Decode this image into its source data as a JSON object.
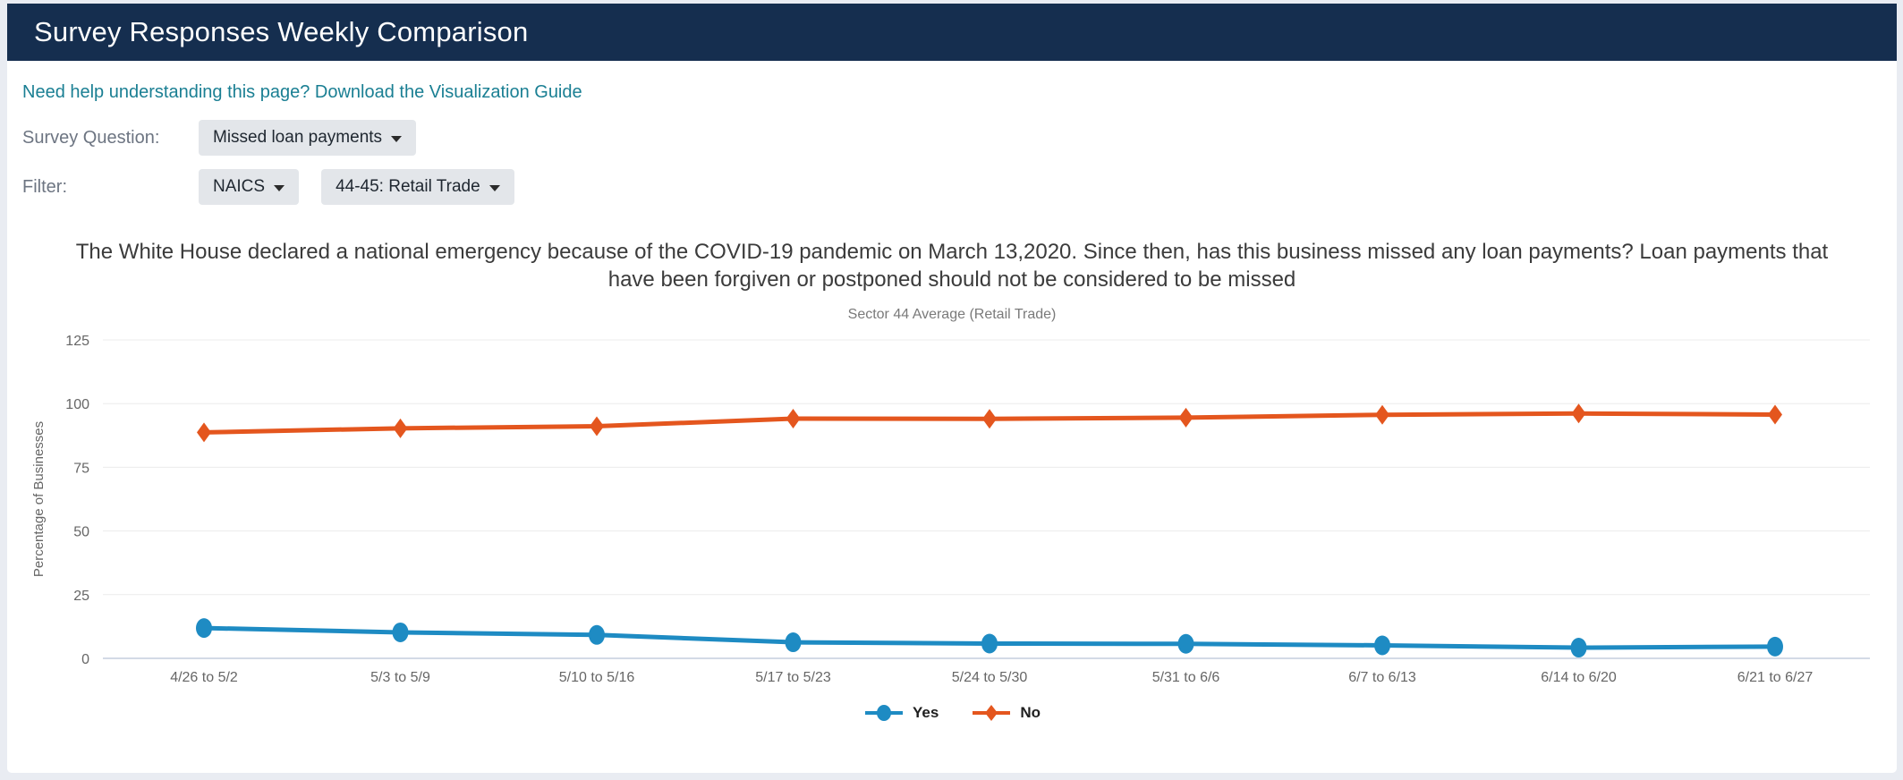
{
  "header": {
    "title": "Survey Responses Weekly Comparison"
  },
  "help_link": {
    "text": "Need help understanding this page? Download the Visualization Guide"
  },
  "controls": {
    "survey_question_label": "Survey Question:",
    "survey_question_value": "Missed loan payments",
    "filter_label": "Filter:",
    "filter_type_value": "NAICS",
    "filter_value": "44-45: Retail Trade"
  },
  "colors": {
    "header_bg": "#152e4f",
    "link": "#1a7f93",
    "dropdown_bg": "#e3e6ea",
    "series_yes": "#1e8bc3",
    "series_no": "#e4561e",
    "gridline": "#ececec",
    "axis_line": "#d3dae6",
    "axis_text": "#666666"
  },
  "chart_data": {
    "type": "line",
    "title": "The White House declared a national emergency because of the COVID-19 pandemic on March 13,2020. Since then, has this business missed any loan payments? Loan payments that have been forgiven or postponed should not be considered to be missed",
    "subtitle": "Sector 44 Average (Retail Trade)",
    "xlabel": "",
    "ylabel": "Percentage of Businesses",
    "ylim": [
      0,
      125
    ],
    "yticks": [
      0,
      25,
      50,
      75,
      100,
      125
    ],
    "grid": true,
    "legend_position": "bottom",
    "categories": [
      "4/26 to 5/2",
      "5/3 to 5/9",
      "5/10 to 5/16",
      "5/17 to 5/23",
      "5/24 to 5/30",
      "5/31 to 6/6",
      "6/7 to 6/13",
      "6/14 to 6/20",
      "6/21 to 6/27"
    ],
    "series": [
      {
        "name": "Yes",
        "color": "#1e8bc3",
        "marker": "circle",
        "values": [
          11.9,
          10.2,
          9.2,
          6.3,
          5.8,
          5.7,
          5.1,
          4.2,
          4.6
        ]
      },
      {
        "name": "No",
        "color": "#e4561e",
        "marker": "diamond",
        "values": [
          88.7,
          90.3,
          91.1,
          94.1,
          94.0,
          94.5,
          95.6,
          96.1,
          95.7
        ]
      }
    ]
  }
}
